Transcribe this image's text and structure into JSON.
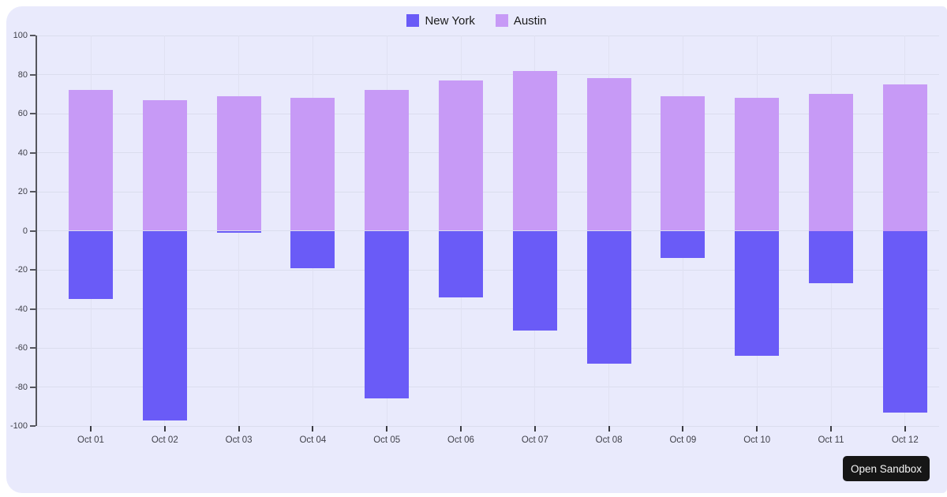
{
  "page": {
    "background": "#ffffff",
    "card_background": "#e9eafc"
  },
  "legend": [
    {
      "label": "New York",
      "color": "#6a5bf7"
    },
    {
      "label": "Austin",
      "color": "#c79af6"
    }
  ],
  "button": {
    "label": "Open Sandbox"
  },
  "chart_data": {
    "type": "bar",
    "stacked": true,
    "title": "",
    "xlabel": "",
    "ylabel": "",
    "categories": [
      "Oct 01",
      "Oct 02",
      "Oct 03",
      "Oct 04",
      "Oct 05",
      "Oct 06",
      "Oct 07",
      "Oct 08",
      "Oct 09",
      "Oct 10",
      "Oct 11",
      "Oct 12"
    ],
    "series": [
      {
        "name": "New York",
        "color": "#6a5bf7",
        "values": [
          -35,
          -97,
          -1,
          -19,
          -86,
          -34,
          -51,
          -68,
          -14,
          -64,
          -27,
          -93
        ]
      },
      {
        "name": "Austin",
        "color": "#c79af6",
        "values": [
          72,
          67,
          69,
          68,
          72,
          77,
          82,
          78,
          69,
          68,
          70,
          75
        ]
      }
    ],
    "ylim": [
      -100,
      100
    ],
    "yticks": [
      100,
      80,
      60,
      40,
      20,
      0,
      -20,
      -40,
      -60,
      -80,
      -100
    ],
    "grid": true,
    "legend_position": "top-center"
  }
}
